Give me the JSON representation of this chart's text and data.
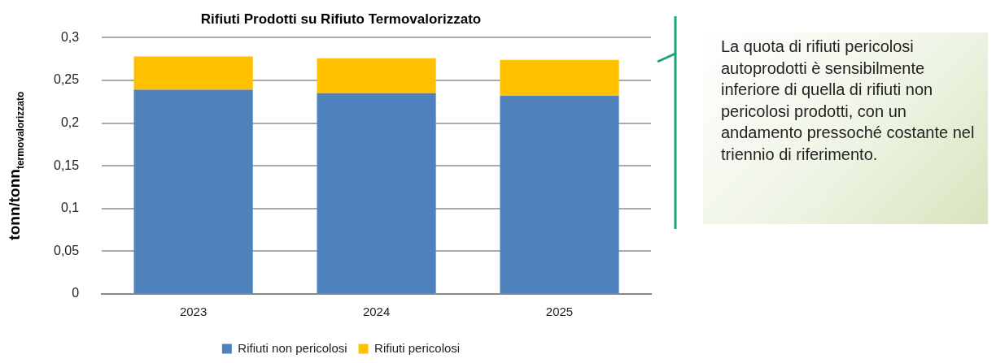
{
  "chart_data": {
    "type": "bar",
    "title": "Rifiuti Prodotti su Rifiuto Termovalorizzato",
    "ylabel": "tonn/tonn$_{termovalorizzato}$",
    "categories": [
      "2023",
      "2024",
      "2025"
    ],
    "series": [
      {
        "name": "Rifiuti non pericolosi",
        "color": "#4f81bd",
        "values": [
          0.239,
          0.235,
          0.232
        ]
      },
      {
        "name": "Rifiuti pericolosi",
        "color": "#ffc000",
        "values": [
          0.039,
          0.041,
          0.042
        ]
      }
    ],
    "stacked": true,
    "ylim": [
      0,
      0.3
    ],
    "yticks": [
      0,
      {
        "value": 0.05,
        "label": "0,05"
      },
      {
        "value": 0.1,
        "label": "0,1"
      },
      {
        "value": 0.15,
        "label": "0,15"
      },
      {
        "value": 0.2,
        "label": "0,2"
      },
      {
        "value": 0.25,
        "label": "0,25"
      },
      {
        "value": 0.3,
        "label": "0,3"
      }
    ],
    "grid": "y",
    "legend": "bottom",
    "annotations": [
      "La quota di rifiuti pericolosi autoprodotti è sensibilmente inferiore di quella di rifiuti non pericolosi prodotti, con un andamento pressoché costante nel triennio di riferimento."
    ]
  }
}
